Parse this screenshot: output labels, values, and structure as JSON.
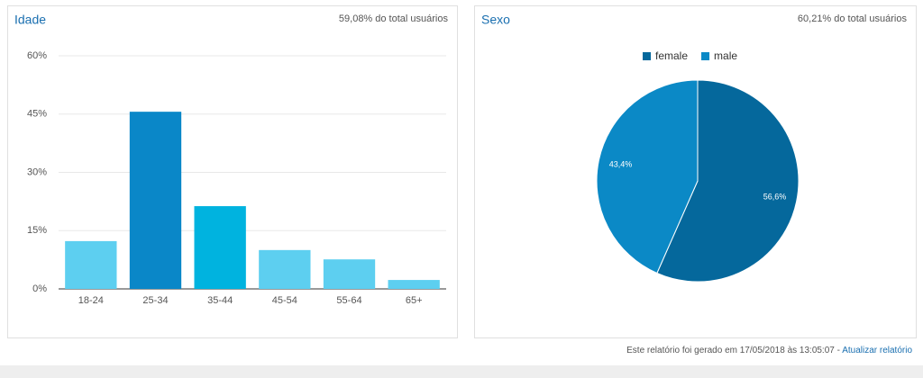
{
  "chart_data": [
    {
      "type": "bar",
      "title": "Idade",
      "subtitle": "59,08% do total usuários",
      "categories": [
        "18-24",
        "25-34",
        "35-44",
        "45-54",
        "55-64",
        "65+"
      ],
      "values": [
        12.3,
        45.6,
        21.3,
        10.0,
        7.6,
        2.3
      ],
      "colors": [
        "#5dcff0",
        "#0a87c8",
        "#00b3df",
        "#5dcff0",
        "#5dcff0",
        "#5dcff0"
      ],
      "ylim": [
        0,
        60
      ],
      "yticks": [
        {
          "value": 0,
          "label": "0%"
        },
        {
          "value": 15,
          "label": "15%"
        },
        {
          "value": 30,
          "label": "30%"
        },
        {
          "value": 45,
          "label": "45%"
        },
        {
          "value": 60,
          "label": "60%"
        }
      ],
      "grid": true
    },
    {
      "type": "pie",
      "title": "Sexo",
      "subtitle": "60,21% do total usuários",
      "categories": [
        "female",
        "male"
      ],
      "values": [
        56.6,
        43.4
      ],
      "value_labels": [
        "56,6%",
        "43,4%"
      ],
      "colors": [
        "#05689c",
        "#0b89c6"
      ],
      "legend": "top"
    }
  ],
  "footer": {
    "text": "Este relatório foi gerado em 17/05/2018 às 13:05:07 -",
    "link": "Atualizar relatório"
  }
}
